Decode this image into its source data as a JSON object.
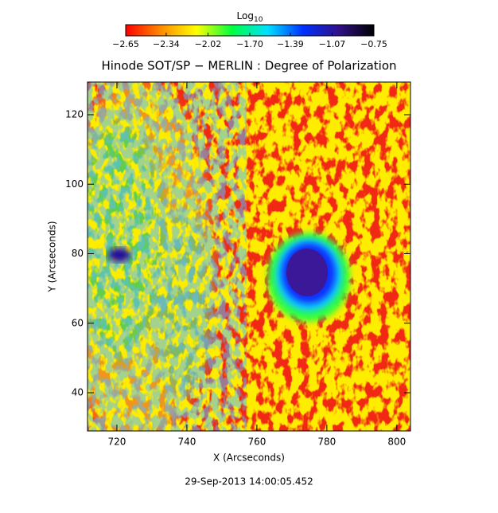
{
  "chart_data": {
    "type": "image",
    "title": "Hinode SOT/SP − MERLIN : Degree of Polarization",
    "xlabel": "X (Arcseconds)",
    "ylabel": "Y (Arcseconds)",
    "footer": "29-Sep-2013 14:00:05.452",
    "colorbar_label": "Log",
    "colorbar_label_sub": "10",
    "colorbar_lim": [
      -2.65,
      -0.75
    ],
    "colorbar_ticks": [
      {
        "value": -2.65,
        "label": "−2.65"
      },
      {
        "value": -2.34,
        "label": "−2.34"
      },
      {
        "value": -2.02,
        "label": "−2.02"
      },
      {
        "value": -1.7,
        "label": "−1.70"
      },
      {
        "value": -1.39,
        "label": "−1.39"
      },
      {
        "value": -1.07,
        "label": "−1.07"
      },
      {
        "value": -0.75,
        "label": "−0.75"
      }
    ],
    "colormap": [
      "#ff0000",
      "#ff8c00",
      "#ffff00",
      "#00ff40",
      "#00e0ff",
      "#0030ff",
      "#30108a",
      "#000000"
    ],
    "xlim": [
      711.6,
      803.9
    ],
    "xticks": [
      720,
      740,
      760,
      780,
      800
    ],
    "ylim": [
      29.0,
      129.4
    ],
    "yticks": [
      40,
      60,
      80,
      100,
      120
    ]
  }
}
